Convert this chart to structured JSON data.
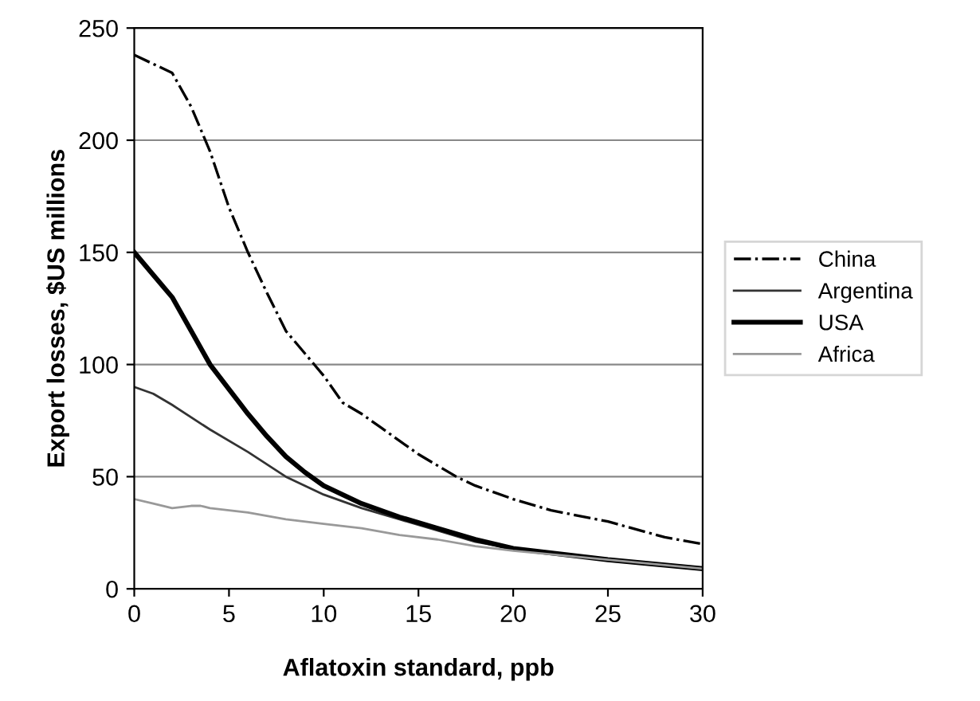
{
  "chart_data": {
    "type": "line",
    "xlabel": "Aflatoxin standard, ppb",
    "ylabel": "Export losses, $US millions",
    "xlim": [
      0,
      30
    ],
    "xticks": [
      0,
      5,
      10,
      15,
      20,
      25,
      30
    ],
    "ylim": [
      0,
      250
    ],
    "yticks": [
      0,
      50,
      100,
      150,
      200,
      250
    ],
    "grid": "y",
    "legend": "right",
    "marker": "none",
    "series": [
      {
        "name": "China",
        "color": "#000000",
        "line_style": "dashdot",
        "x": [
          0,
          1,
          2,
          3,
          4,
          5,
          6,
          7,
          8,
          9,
          10,
          11,
          12,
          13,
          14,
          15,
          16,
          17,
          18,
          20,
          22,
          25,
          28,
          30
        ],
        "values": [
          238,
          234,
          230,
          215,
          195,
          170,
          150,
          132,
          115,
          105,
          95,
          83,
          78,
          72,
          66,
          60,
          55,
          50,
          46,
          40,
          35,
          30,
          23,
          20
        ]
      },
      {
        "name": "Argentina",
        "color": "#333333",
        "line_style": "solid",
        "x": [
          0,
          1,
          2,
          4,
          6,
          8,
          9,
          10,
          12,
          14,
          16,
          18,
          20,
          25,
          30
        ],
        "values": [
          90,
          87,
          82,
          71,
          61,
          50,
          46,
          42,
          36,
          31,
          26,
          21,
          18,
          13,
          9
        ]
      },
      {
        "name": "USA",
        "color": "#000000",
        "line_style": "solid",
        "x": [
          0,
          1,
          2,
          3,
          4,
          5,
          6,
          7,
          8,
          9,
          10,
          12,
          14,
          16,
          18,
          20,
          25,
          30
        ],
        "values": [
          150,
          140,
          130,
          115,
          100,
          89,
          78,
          68,
          59,
          52,
          46,
          38,
          32,
          27,
          22,
          18,
          13,
          9
        ]
      },
      {
        "name": "Africa",
        "color": "#999999",
        "line_style": "solid",
        "x": [
          0,
          1,
          2,
          3,
          3.5,
          4,
          6,
          8,
          10,
          12,
          14,
          16,
          18,
          20,
          25,
          30
        ],
        "values": [
          40,
          38,
          36,
          37,
          37,
          36,
          34,
          31,
          29,
          27,
          24,
          22,
          19,
          17,
          13,
          9
        ]
      }
    ]
  }
}
